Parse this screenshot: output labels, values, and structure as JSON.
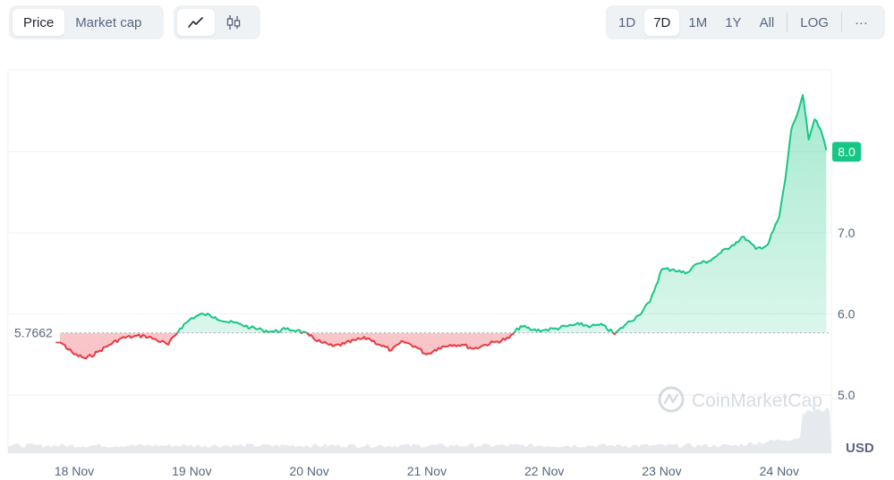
{
  "toolbar": {
    "view_tabs": [
      {
        "label": "Price",
        "active": true
      },
      {
        "label": "Market cap",
        "active": false
      }
    ],
    "chart_types": [
      {
        "icon": "line-chart-icon",
        "active": true
      },
      {
        "icon": "candlestick-icon",
        "active": false
      }
    ],
    "ranges": [
      {
        "label": "1D",
        "active": false
      },
      {
        "label": "7D",
        "active": true
      },
      {
        "label": "1M",
        "active": false
      },
      {
        "label": "1Y",
        "active": false
      },
      {
        "label": "All",
        "active": false
      }
    ],
    "log_label": "LOG",
    "more_label": "···"
  },
  "watermark": "CoinMarketCap",
  "currency_label": "USD",
  "colors": {
    "up": "#16c784",
    "down": "#ea3943",
    "grid": "#eff2f5",
    "text_muted": "#58667e"
  },
  "chart_data": {
    "type": "line",
    "x_tick_labels": [
      "18 Nov",
      "19 Nov",
      "20 Nov",
      "21 Nov",
      "22 Nov",
      "23 Nov",
      "24 Nov"
    ],
    "y_tick_labels": [
      "5.0",
      "6.0",
      "7.0"
    ],
    "ylim": [
      4.3,
      9.0
    ],
    "baseline": 5.7662,
    "baseline_label": "5.7662",
    "current_value": 8.0,
    "current_label": "8.0",
    "x_days": [
      -0.3,
      -0.2,
      -0.1,
      0.0,
      0.1,
      0.2,
      0.3,
      0.4,
      0.5,
      0.6,
      0.7,
      0.8,
      0.9,
      1.0,
      1.1,
      1.2,
      1.3,
      1.4,
      1.5,
      1.6,
      1.7,
      1.8,
      1.9,
      2.0,
      2.1,
      2.2,
      2.3,
      2.4,
      2.5,
      2.6,
      2.7,
      2.8,
      2.9,
      3.0,
      3.1,
      3.2,
      3.3,
      3.4,
      3.5,
      3.6,
      3.7,
      3.8,
      3.9,
      4.0,
      4.1,
      4.2,
      4.3,
      4.4,
      4.5,
      4.6,
      4.7,
      4.8,
      4.9,
      5.0,
      5.1,
      5.2,
      5.3,
      5.4,
      5.5,
      5.6,
      5.7,
      5.8,
      5.9,
      6.0,
      6.05,
      6.1,
      6.12,
      6.15,
      6.2,
      6.25,
      6.3,
      6.35,
      6.4
    ],
    "values": [
      5.78,
      5.7,
      5.63,
      5.5,
      5.45,
      5.53,
      5.62,
      5.7,
      5.72,
      5.73,
      5.68,
      5.62,
      5.82,
      5.95,
      6.0,
      5.96,
      5.9,
      5.88,
      5.83,
      5.8,
      5.78,
      5.81,
      5.8,
      5.73,
      5.65,
      5.6,
      5.63,
      5.68,
      5.7,
      5.62,
      5.55,
      5.66,
      5.6,
      5.5,
      5.58,
      5.62,
      5.62,
      5.57,
      5.62,
      5.66,
      5.7,
      5.85,
      5.8,
      5.8,
      5.82,
      5.85,
      5.87,
      5.85,
      5.86,
      5.75,
      5.88,
      5.98,
      6.15,
      6.55,
      6.55,
      6.5,
      6.62,
      6.65,
      6.75,
      6.85,
      6.95,
      6.8,
      6.85,
      7.2,
      7.65,
      8.25,
      8.35,
      8.45,
      8.7,
      8.15,
      8.4,
      8.28,
      8.02
    ]
  }
}
